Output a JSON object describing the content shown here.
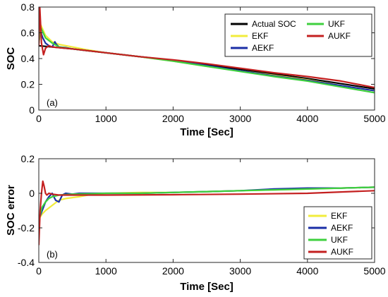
{
  "chart_data": [
    {
      "type": "line",
      "panel_label": "(a)",
      "xlabel": "Time [Sec]",
      "ylabel": "SOC",
      "xlim": [
        0,
        5000
      ],
      "ylim": [
        0,
        0.8
      ],
      "xticks": [
        0,
        1000,
        2000,
        3000,
        4000,
        5000
      ],
      "yticks": [
        0,
        0.2,
        0.4,
        0.6,
        0.8
      ],
      "ytick_labels": [
        "0",
        "0.2",
        "0.4",
        "0.6",
        "0.8"
      ],
      "grid": false,
      "legend_position": "top-right",
      "legend_columns": [
        [
          "Actual SOC",
          "EKF",
          "AEKF"
        ],
        [
          "UKF",
          "AUKF"
        ]
      ],
      "series": [
        {
          "name": "Actual SOC",
          "color": "#000000",
          "x": [
            0,
            500,
            1000,
            1500,
            2000,
            2500,
            3000,
            3500,
            4000,
            4500,
            5000
          ],
          "y": [
            0.5,
            0.475,
            0.445,
            0.415,
            0.385,
            0.35,
            0.315,
            0.28,
            0.245,
            0.205,
            0.165
          ]
        },
        {
          "name": "EKF",
          "color": "#f2ec3c",
          "x": [
            0,
            30,
            100,
            200,
            300,
            500,
            700,
            1000,
            1500,
            2000,
            2500,
            3000,
            3500,
            4000,
            4500,
            5000
          ],
          "y": [
            0.52,
            0.66,
            0.58,
            0.53,
            0.51,
            0.49,
            0.47,
            0.445,
            0.415,
            0.38,
            0.34,
            0.305,
            0.27,
            0.235,
            0.19,
            0.15
          ]
        },
        {
          "name": "AEKF",
          "color": "#1a2ea6",
          "x": [
            0,
            20,
            60,
            100,
            150,
            200,
            240,
            260,
            300,
            400,
            500,
            1000,
            1500,
            2000,
            2500,
            3000,
            3500,
            4000,
            4500,
            5000
          ],
          "y": [
            0.52,
            0.62,
            0.56,
            0.52,
            0.5,
            0.49,
            0.53,
            0.51,
            0.49,
            0.485,
            0.475,
            0.445,
            0.415,
            0.385,
            0.345,
            0.305,
            0.265,
            0.23,
            0.19,
            0.15
          ]
        },
        {
          "name": "UKF",
          "color": "#3ed03e",
          "x": [
            0,
            30,
            100,
            200,
            300,
            500,
            1000,
            1500,
            2000,
            2500,
            3000,
            3500,
            4000,
            4500,
            5000
          ],
          "y": [
            0.52,
            0.64,
            0.56,
            0.52,
            0.49,
            0.475,
            0.445,
            0.415,
            0.38,
            0.34,
            0.3,
            0.26,
            0.225,
            0.18,
            0.135
          ]
        },
        {
          "name": "AUKF",
          "color": "#c42020",
          "x": [
            0,
            15,
            40,
            70,
            100,
            150,
            200,
            500,
            1000,
            1500,
            2000,
            2500,
            3000,
            3500,
            4000,
            4500,
            5000
          ],
          "y": [
            0.5,
            0.8,
            0.52,
            0.43,
            0.48,
            0.5,
            0.49,
            0.475,
            0.445,
            0.415,
            0.39,
            0.36,
            0.325,
            0.29,
            0.26,
            0.225,
            0.175
          ]
        }
      ]
    },
    {
      "type": "line",
      "panel_label": "(b)",
      "xlabel": "Time [Sec]",
      "ylabel": "SOC error",
      "xlim": [
        0,
        5000
      ],
      "ylim": [
        -0.4,
        0.2
      ],
      "xticks": [
        0,
        1000,
        2000,
        3000,
        4000,
        5000
      ],
      "yticks": [
        -0.4,
        -0.2,
        0,
        0.2
      ],
      "ytick_labels": [
        "-0.4",
        "-0.2",
        "0",
        "0.2"
      ],
      "grid": false,
      "legend_position": "bottom-right",
      "legend_columns": [
        [
          "EKF",
          "AEKF",
          "UKF",
          "AUKF"
        ]
      ],
      "series": [
        {
          "name": "EKF",
          "color": "#f2ec3c",
          "x": [
            0,
            50,
            100,
            200,
            300,
            400,
            600,
            800,
            1000,
            1500,
            2000,
            2500,
            3000,
            3500,
            4000,
            4500,
            5000
          ],
          "y": [
            -0.15,
            -0.12,
            -0.1,
            -0.07,
            -0.04,
            -0.03,
            -0.02,
            -0.005,
            0.0,
            0.005,
            0.005,
            0.01,
            0.015,
            0.02,
            0.025,
            0.03,
            0.035
          ]
        },
        {
          "name": "AEKF",
          "color": "#1a2ea6",
          "x": [
            0,
            50,
            100,
            150,
            200,
            250,
            300,
            350,
            400,
            500,
            600,
            1000,
            1500,
            2000,
            2500,
            3000,
            3500,
            4000,
            4500,
            5000
          ],
          "y": [
            -0.15,
            -0.1,
            -0.05,
            -0.02,
            0.0,
            -0.04,
            -0.05,
            -0.01,
            0.0,
            -0.005,
            0.0,
            0.0,
            0.0,
            0.005,
            0.01,
            0.015,
            0.025,
            0.03,
            0.03,
            0.035
          ]
        },
        {
          "name": "UKF",
          "color": "#3ed03e",
          "x": [
            0,
            50,
            100,
            150,
            200,
            300,
            500,
            1000,
            1500,
            2000,
            2500,
            3000,
            3500,
            4000,
            4500,
            5000
          ],
          "y": [
            -0.15,
            -0.08,
            -0.05,
            -0.03,
            -0.02,
            -0.01,
            -0.005,
            0.0,
            0.0,
            0.005,
            0.01,
            0.015,
            0.02,
            0.025,
            0.03,
            0.035
          ]
        },
        {
          "name": "AUKF",
          "color": "#c42020",
          "x": [
            0,
            20,
            40,
            60,
            80,
            100,
            120,
            150,
            200,
            300,
            500,
            1000,
            2000,
            3000,
            4000,
            5000
          ],
          "y": [
            -0.3,
            -0.1,
            0.0,
            0.07,
            0.04,
            0.0,
            -0.01,
            0.0,
            -0.005,
            -0.01,
            -0.01,
            -0.01,
            -0.008,
            -0.005,
            0.0,
            0.015
          ]
        }
      ]
    }
  ]
}
